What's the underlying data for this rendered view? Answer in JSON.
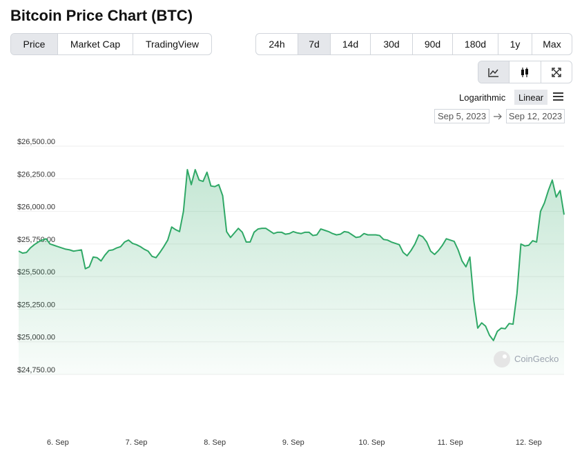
{
  "header": {
    "title": "Bitcoin Price Chart (BTC)"
  },
  "tabs": [
    {
      "label": "Price",
      "selected": true
    },
    {
      "label": "Market Cap",
      "selected": false
    },
    {
      "label": "TradingView",
      "selected": false
    }
  ],
  "ranges": [
    {
      "label": "24h",
      "selected": false
    },
    {
      "label": "7d",
      "selected": true
    },
    {
      "label": "14d",
      "selected": false
    },
    {
      "label": "30d",
      "selected": false
    },
    {
      "label": "90d",
      "selected": false
    },
    {
      "label": "180d",
      "selected": false
    },
    {
      "label": "1y",
      "selected": false
    },
    {
      "label": "Max",
      "selected": false
    }
  ],
  "scale_options": [
    {
      "label": "Logarithmic",
      "selected": false
    },
    {
      "label": "Linear",
      "selected": true
    }
  ],
  "date_range": {
    "from": "Sep 5, 2023",
    "to": "Sep 12, 2023"
  },
  "watermark": "CoinGecko",
  "chart_data": {
    "type": "area",
    "color": "#2fa866",
    "grid": true,
    "categories": [
      null,
      null,
      null,
      null,
      null,
      null,
      null,
      null,
      null,
      null,
      "6. Sep",
      null,
      null,
      null,
      null,
      null,
      null,
      null,
      null,
      null,
      null,
      null,
      null,
      null,
      null,
      null,
      null,
      null,
      null,
      null,
      "7. Sep",
      null,
      null,
      null,
      null,
      null,
      null,
      null,
      null,
      null,
      null,
      null,
      null,
      null,
      null,
      null,
      null,
      null,
      null,
      null,
      "8. Sep",
      null,
      null,
      null,
      null,
      null,
      null,
      null,
      null,
      null,
      null,
      null,
      null,
      null,
      null,
      null,
      null,
      null,
      null,
      null,
      "9. Sep",
      null,
      null,
      null,
      null,
      null,
      null,
      null,
      null,
      null,
      null,
      null,
      null,
      null,
      null,
      null,
      null,
      null,
      null,
      null,
      "10. Sep",
      null,
      null,
      null,
      null,
      null,
      null,
      null,
      null,
      null,
      null,
      null,
      null,
      null,
      null,
      null,
      null,
      null,
      null,
      null,
      "11. Sep",
      null,
      null,
      null,
      null,
      null,
      null,
      null,
      null,
      null,
      null,
      null,
      null,
      null,
      null,
      null,
      null,
      null,
      null,
      null,
      "12. Sep",
      null,
      null,
      null,
      null,
      null,
      null,
      null,
      null,
      null
    ],
    "values": [
      25696,
      25680,
      25685,
      25720,
      25745,
      25765,
      25780,
      25790,
      25750,
      25740,
      25730,
      25720,
      25710,
      25705,
      25695,
      25700,
      25705,
      25560,
      25575,
      25650,
      25645,
      25620,
      25665,
      25700,
      25705,
      25720,
      25730,
      25765,
      25780,
      25755,
      25745,
      25730,
      25710,
      25695,
      25655,
      25645,
      25685,
      25730,
      25780,
      25880,
      25860,
      25845,
      26000,
      26320,
      26205,
      26320,
      26240,
      26230,
      26300,
      26195,
      26190,
      26205,
      26120,
      25845,
      25800,
      25835,
      25870,
      25840,
      25765,
      25765,
      25840,
      25865,
      25870,
      25870,
      25850,
      25830,
      25840,
      25840,
      25825,
      25830,
      25845,
      25835,
      25830,
      25840,
      25840,
      25815,
      25820,
      25865,
      25855,
      25845,
      25830,
      25820,
      25825,
      25845,
      25840,
      25820,
      25800,
      25805,
      25830,
      25820,
      25820,
      25820,
      25815,
      25785,
      25780,
      25765,
      25755,
      25745,
      25685,
      25660,
      25700,
      25750,
      25820,
      25805,
      25765,
      25695,
      25670,
      25700,
      25740,
      25790,
      25780,
      25770,
      25705,
      25620,
      25575,
      25650,
      25315,
      25105,
      25145,
      25120,
      25050,
      25010,
      25080,
      25105,
      25100,
      25140,
      25135,
      25370,
      25750,
      25735,
      25740,
      25775,
      25765,
      26000,
      26065,
      26160,
      26240,
      26110,
      26160,
      25975
    ],
    "ylim": [
      24750,
      26500
    ],
    "yticks": [
      {
        "value": 24750,
        "label": "$24,750.00"
      },
      {
        "value": 25000,
        "label": "$25,000.00"
      },
      {
        "value": 25250,
        "label": "$25,250.00"
      },
      {
        "value": 25500,
        "label": "$25,500.00"
      },
      {
        "value": 25750,
        "label": "$25,750.00"
      },
      {
        "value": 26000,
        "label": "$26,000.00"
      },
      {
        "value": 26250,
        "label": "$26,250.00"
      },
      {
        "value": 26500,
        "label": "$26,500.00"
      }
    ]
  }
}
